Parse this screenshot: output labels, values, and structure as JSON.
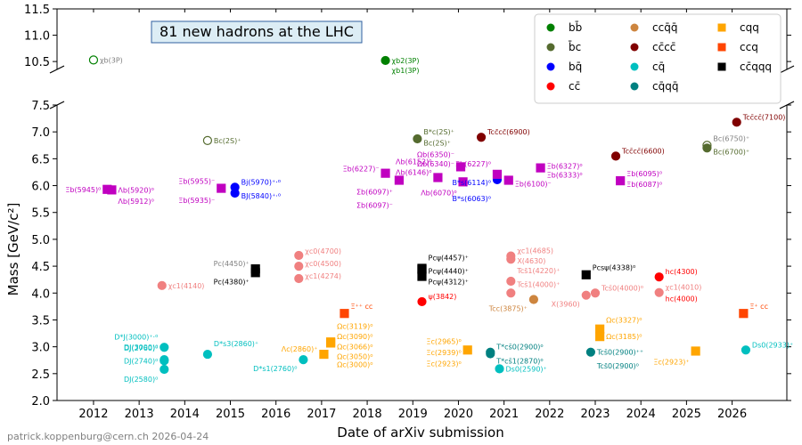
{
  "chart_data": {
    "type": "scatter",
    "title": "81 new hadrons at the LHC",
    "xlabel": "Date of arXiv submission",
    "ylabel": "Mass [GeV/c²]",
    "credit": "patrick.koppenburg@cern.ch 2026-04-24",
    "xlim": [
      2011.2,
      2027.2
    ],
    "ylim_main": [
      2.0,
      7.5
    ],
    "ylim_top": [
      10.35,
      11.5
    ],
    "xticks": [
      "2012",
      "2013",
      "2014",
      "2015",
      "2016",
      "2017",
      "2018",
      "2019",
      "2020",
      "2021",
      "2022",
      "2023",
      "2024",
      "2025",
      "2026"
    ],
    "yticks_main": [
      "2.0",
      "2.5",
      "3.0",
      "3.5",
      "4.0",
      "4.5",
      "5.0",
      "5.5",
      "6.0",
      "6.5",
      "7.0",
      "7.5"
    ],
    "yticks_top": [
      "10.5",
      "11.0",
      "11.5"
    ],
    "legend_position": "top-right",
    "categories": [
      {
        "name": "bb̄",
        "color": "#008000",
        "marker": "circle"
      },
      {
        "name": "b̄c",
        "color": "#556B2F",
        "marker": "circle"
      },
      {
        "name": "bq̄",
        "color": "#0000FF",
        "marker": "circle"
      },
      {
        "name": "cc̄",
        "color": "#FF0000",
        "marker": "circle"
      },
      {
        "name": "cs̄(qq̄)",
        "color": "#F08080",
        "marker": "circle"
      },
      {
        "name": "ccq̄q̄",
        "color": "#CD853F",
        "marker": "circle"
      },
      {
        "name": "cc̄cc̄",
        "color": "#800000",
        "marker": "circle"
      },
      {
        "name": "cq̄",
        "color": "#00BFBF",
        "marker": "circle"
      },
      {
        "name": "cq̄qq̄",
        "color": "#008080",
        "marker": "circle"
      },
      {
        "name": "bqq",
        "color": "#C000C0",
        "marker": "square"
      },
      {
        "name": "cqq",
        "color": "#FFA500",
        "marker": "square"
      },
      {
        "name": "ccq",
        "color": "#FF4500",
        "marker": "square"
      },
      {
        "name": "cc̄qqq",
        "color": "#000000",
        "marker": "square"
      }
    ],
    "points": [
      {
        "x": 2012.0,
        "y": 10.53,
        "cat": 0,
        "open": true,
        "label": "χb(3P)",
        "lc": "#808080"
      },
      {
        "x": 2018.4,
        "y": 10.52,
        "cat": 0,
        "label": "χb2(3P)",
        "lc": "#008000"
      },
      {
        "x": 2018.4,
        "y": 10.52,
        "cat": 0,
        "label": "χb1(3P)",
        "lc": "#008000",
        "dy": 11,
        "nomark": true
      },
      {
        "x": 2012.3,
        "y": 5.93,
        "cat": 9,
        "label": "Ξb(5945)⁰",
        "side": "l"
      },
      {
        "x": 2012.4,
        "y": 5.92,
        "cat": 9,
        "label": "Λb(5920)⁰"
      },
      {
        "x": 2012.4,
        "y": 5.91,
        "cat": 9,
        "label": "Λb(5912)⁰",
        "dy": 12,
        "nomark": true
      },
      {
        "x": 2013.5,
        "y": 4.14,
        "cat": 4,
        "label": "χc1(4140)"
      },
      {
        "x": 2013.55,
        "y": 3.0,
        "cat": 7,
        "label": "D*J(3000)⁺·⁰",
        "side": "l",
        "dy": -11,
        "nomark": true
      },
      {
        "x": 2013.55,
        "y": 2.99,
        "cat": 7,
        "label": "DJ(3000)⁰",
        "side": "l"
      },
      {
        "x": 2013.55,
        "y": 2.76,
        "cat": 7,
        "label": "DJ(2760)⁰",
        "side": "l",
        "dy": -13
      },
      {
        "x": 2013.55,
        "y": 2.74,
        "cat": 7,
        "label": "DJ(2740)⁰",
        "side": "l"
      },
      {
        "x": 2013.55,
        "y": 2.58,
        "cat": 7,
        "label": "DJ(2580)⁰",
        "side": "l",
        "dy": 11
      },
      {
        "x": 2014.5,
        "y": 6.84,
        "cat": 1,
        "open": true,
        "label": "Bc(2S)⁺"
      },
      {
        "x": 2014.5,
        "y": 2.86,
        "cat": 7,
        "label": "D*s3(2860)⁺",
        "dy": -12
      },
      {
        "x": 2014.8,
        "y": 5.95,
        "cat": 9,
        "label": "Ξb(5955)⁻",
        "side": "l",
        "dy": -8
      },
      {
        "x": 2014.8,
        "y": 5.93,
        "cat": 9,
        "label": "Ξb(5935)⁻",
        "side": "l",
        "dy": 12,
        "nomark": true
      },
      {
        "x": 2015.1,
        "y": 5.97,
        "cat": 2,
        "label": "Bj(5970)⁺·⁰",
        "dy": -6
      },
      {
        "x": 2015.1,
        "y": 5.86,
        "cat": 2,
        "label": "BJ(5840)⁺·⁰",
        "dy": 3
      },
      {
        "x": 2015.55,
        "y": 4.45,
        "cat": 12,
        "label": "Pc(4450)⁺",
        "side": "l",
        "lc": "#808080",
        "dy": -6
      },
      {
        "x": 2015.55,
        "y": 4.38,
        "cat": 12,
        "label": "Pc(4380)⁺",
        "side": "l",
        "dy": 10
      },
      {
        "x": 2016.5,
        "y": 4.7,
        "cat": 4,
        "label": "χc0(4700)",
        "dy": -5
      },
      {
        "x": 2016.5,
        "y": 4.5,
        "cat": 4,
        "label": "χc0(4500)",
        "dy": -3
      },
      {
        "x": 2016.5,
        "y": 4.27,
        "cat": 4,
        "label": "χc1(4274)",
        "dy": -3
      },
      {
        "x": 2016.6,
        "y": 2.76,
        "cat": 7,
        "label": "D*s1(2760)⁰",
        "side": "l",
        "dy": 10
      },
      {
        "x": 2017.05,
        "y": 2.86,
        "cat": 10,
        "label": "Λc(2860)⁺",
        "side": "l",
        "dy": -6
      },
      {
        "x": 2017.2,
        "y": 3.12,
        "cat": 10,
        "label": "Ωc(3119)⁰",
        "dy": -16,
        "nomark": true
      },
      {
        "x": 2017.2,
        "y": 3.09,
        "cat": 10,
        "label": "Ωc(3090)⁰",
        "dy": -6
      },
      {
        "x": 2017.2,
        "y": 3.07,
        "cat": 10,
        "label": "Ωc(3066)⁰",
        "dy": 4
      },
      {
        "x": 2017.2,
        "y": 3.05,
        "cat": 10,
        "label": "Ωc(3050)⁰",
        "dy": 14,
        "nomark": true
      },
      {
        "x": 2017.2,
        "y": 3.0,
        "cat": 10,
        "label": "Ωc(3000)⁰",
        "dy": 20,
        "nomark": true
      },
      {
        "x": 2017.5,
        "y": 3.62,
        "cat": 11,
        "label": "Ξ⁺⁺ cc",
        "dy": -8
      },
      {
        "x": 2018.4,
        "y": 6.23,
        "cat": 9,
        "label": "Ξb(6227)⁻",
        "side": "l",
        "dy": -5
      },
      {
        "x": 2018.7,
        "y": 6.1,
        "cat": 9,
        "label": "Σb(6097)⁺",
        "side": "l",
        "dy": 13
      },
      {
        "x": 2018.7,
        "y": 6.1,
        "cat": 9,
        "label": "Σb(6097)⁻",
        "side": "l",
        "dy": 28,
        "nomark": true
      },
      {
        "x": 2019.1,
        "y": 6.87,
        "cat": 1,
        "label": "B*c(2S)⁺",
        "dy": -8
      },
      {
        "x": 2019.1,
        "y": 6.86,
        "cat": 1,
        "label": "Bc(2S)⁺",
        "dy": 4,
        "nomark": true
      },
      {
        "x": 2019.2,
        "y": 4.46,
        "cat": 12,
        "label": "Pcψ(4457)⁺",
        "dy": -12
      },
      {
        "x": 2019.2,
        "y": 4.44,
        "cat": 12,
        "label": "Pcψ(4440)⁺",
        "dy": 2
      },
      {
        "x": 2019.2,
        "y": 4.31,
        "cat": 12,
        "label": "Pcψ(4312)⁺",
        "dy": 6
      },
      {
        "x": 2019.2,
        "y": 3.84,
        "cat": 3,
        "label": "ψ(3842)",
        "dy": -6
      },
      {
        "x": 2019.55,
        "y": 6.15,
        "cat": 9,
        "label": "Λb(6152)⁰",
        "side": "l",
        "dy": -18
      },
      {
        "x": 2019.55,
        "y": 6.15,
        "cat": 9,
        "label": "Λb(6146)⁰",
        "side": "l",
        "dy": -6,
        "nomark": true
      },
      {
        "x": 2020.05,
        "y": 6.35,
        "cat": 9,
        "label": "Ωb(6350)⁻",
        "side": "l",
        "dy": -14
      },
      {
        "x": 2020.05,
        "y": 6.34,
        "cat": 9,
        "label": "Ωb(6340)⁻",
        "side": "l",
        "dy": -4,
        "nomark": true
      },
      {
        "x": 2020.1,
        "y": 6.07,
        "cat": 9,
        "label": "Λb(6070)⁰",
        "side": "l",
        "dy": 12
      },
      {
        "x": 2020.2,
        "y": 2.94,
        "cat": 10,
        "label": "Ξc(2965)⁰",
        "side": "l",
        "dy": -10
      },
      {
        "x": 2020.2,
        "y": 2.93,
        "cat": 10,
        "label": "Ξc(2939)⁰",
        "side": "l",
        "dy": 2,
        "nomark": true
      },
      {
        "x": 2020.2,
        "y": 2.92,
        "cat": 10,
        "label": "Ξc(2923)⁰",
        "side": "l",
        "dy": 14,
        "nomark": true
      },
      {
        "x": 2020.5,
        "y": 6.9,
        "cat": 6,
        "label": "Tcc̄cc̄(6900)",
        "dy": -6
      },
      {
        "x": 2020.7,
        "y": 2.9,
        "cat": 8,
        "label": "T*cs̄0(2900)⁰",
        "dy": -6
      },
      {
        "x": 2020.7,
        "y": 2.87,
        "cat": 8,
        "label": "T*cs̄1(2870)⁰",
        "dy": 8
      },
      {
        "x": 2020.85,
        "y": 6.11,
        "cat": 2,
        "label": "B*s(6114)⁰",
        "side": "l",
        "dy": 3
      },
      {
        "x": 2020.85,
        "y": 6.06,
        "cat": 2,
        "label": "B*s(6063)⁰",
        "side": "l",
        "dy": 18,
        "nomark": true
      },
      {
        "x": 2020.85,
        "y": 6.21,
        "cat": 9,
        "label": "Ξb(6227)⁰",
        "side": "l",
        "dy": -12
      },
      {
        "x": 2020.9,
        "y": 2.59,
        "cat": 7,
        "label": "Ds0(2590)⁺"
      },
      {
        "x": 2021.1,
        "y": 6.1,
        "cat": 9,
        "label": "Ξb(6100)⁻",
        "dy": 4
      },
      {
        "x": 2021.15,
        "y": 4.69,
        "cat": 4,
        "label": "χc1(4685)",
        "dy": -6
      },
      {
        "x": 2021.15,
        "y": 4.63,
        "cat": 4,
        "label": "X(4630)",
        "dy": 2
      },
      {
        "x": 2021.15,
        "y": 4.22,
        "cat": 4,
        "label": "Tcs̄1(4220)⁺",
        "dy": -12
      },
      {
        "x": 2021.15,
        "y": 4.0,
        "cat": 4,
        "label": "Tcs̄1(4000)⁺",
        "dy": -10
      },
      {
        "x": 2021.65,
        "y": 3.88,
        "cat": 5,
        "label": "Tcc(3875)⁺",
        "side": "l",
        "dy": 10
      },
      {
        "x": 2021.8,
        "y": 6.33,
        "cat": 9,
        "label": "Ξb(6327)⁰",
        "dy": -2
      },
      {
        "x": 2021.8,
        "y": 6.33,
        "cat": 9,
        "label": "Ξb(6333)⁰",
        "dy": 8,
        "nomark": true
      },
      {
        "x": 2022.8,
        "y": 4.34,
        "cat": 12,
        "label": "Pcsψ(4338)⁰",
        "dy": -8
      },
      {
        "x": 2022.8,
        "y": 3.96,
        "cat": 4,
        "label": "X(3960)",
        "side": "l",
        "dy": 10
      },
      {
        "x": 2023.0,
        "y": 4.0,
        "cat": 4,
        "label": "Tcs̄0(4000)⁰",
        "dy": -6
      },
      {
        "x": 2023.1,
        "y": 3.33,
        "cat": 10,
        "label": "Ωc(3327)⁰",
        "dy": -10
      },
      {
        "x": 2023.1,
        "y": 3.19,
        "cat": 10,
        "label": "Ωc(3185)⁰",
        "dy": 0
      },
      {
        "x": 2022.9,
        "y": 2.9,
        "cat": 8,
        "label": "Tcs̄0(2900)⁺⁺",
        "dy": 0
      },
      {
        "x": 2022.9,
        "y": 2.88,
        "cat": 8,
        "label": "Tcs̄0(2900)⁰",
        "dy": 14,
        "nomark": true
      },
      {
        "x": 2023.45,
        "y": 6.55,
        "cat": 6,
        "label": "Tcc̄cc̄(6600)",
        "dy": -6
      },
      {
        "x": 2023.55,
        "y": 6.09,
        "cat": 9,
        "label": "Ξb(6095)⁰",
        "dy": -8
      },
      {
        "x": 2023.55,
        "y": 6.09,
        "cat": 9,
        "label": "Ξb(6087)⁰",
        "dy": 4,
        "nomark": true
      },
      {
        "x": 2024.4,
        "y": 4.3,
        "cat": 3,
        "label": "hc(4300)",
        "dy": -6
      },
      {
        "x": 2024.4,
        "y": 4.01,
        "cat": 4,
        "label": "χc1(4010)",
        "dy": -6
      },
      {
        "x": 2024.4,
        "y": 4.0,
        "cat": 3,
        "label": "hc(4000)",
        "dy": 6,
        "nomark": true
      },
      {
        "x": 2025.2,
        "y": 2.92,
        "cat": 10,
        "label": "Ξc(2923)⁺",
        "side": "l",
        "dy": 12
      },
      {
        "x": 2025.45,
        "y": 6.75,
        "cat": 1,
        "open": true,
        "label": "Bc(6750)⁺",
        "dy": -8,
        "lc": "#808080"
      },
      {
        "x": 2025.45,
        "y": 6.7,
        "cat": 1,
        "label": "Bc(6700)⁺",
        "dy": 4
      },
      {
        "x": 2026.1,
        "y": 7.18,
        "cat": 6,
        "label": "Tcc̄cc̄(7100)",
        "dy": -6
      },
      {
        "x": 2026.25,
        "y": 3.62,
        "cat": 11,
        "label": "Ξ⁺ cc",
        "dy": -8
      },
      {
        "x": 2026.3,
        "y": 2.94,
        "cat": 7,
        "label": "Ds0(2933)⁺",
        "dy": -6
      }
    ]
  }
}
